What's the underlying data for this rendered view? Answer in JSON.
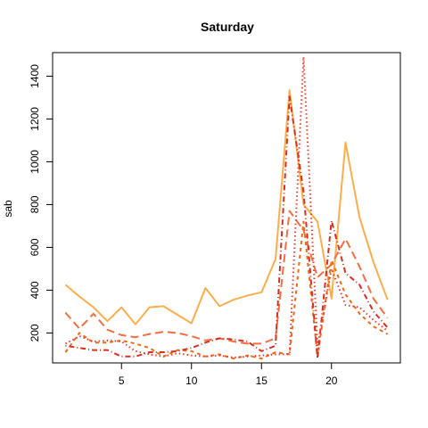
{
  "chart_data": {
    "type": "line",
    "title": "Saturday",
    "xlabel": "",
    "ylabel": "sab",
    "xlim": [
      0.08,
      24.92
    ],
    "ylim": [
      60,
      1510
    ],
    "xticks": [
      5,
      10,
      15,
      20
    ],
    "yticks": [
      200,
      400,
      600,
      800,
      1000,
      1200,
      1400
    ],
    "grid": false,
    "legend": "none",
    "x": [
      1,
      2,
      3,
      4,
      5,
      6,
      7,
      8,
      9,
      10,
      11,
      12,
      13,
      14,
      15,
      16,
      17,
      18,
      19,
      20,
      21,
      22,
      23,
      24
    ],
    "series": [
      {
        "color": "#FDAE4B",
        "dash": "solid",
        "values": [
          425,
          370,
          320,
          255,
          320,
          240,
          320,
          325,
          285,
          245,
          410,
          325,
          355,
          375,
          390,
          545,
          1335,
          800,
          720,
          360,
          1090,
          740,
          530,
          355
        ]
      },
      {
        "color": "#F46D43",
        "dash": "longdash",
        "values": [
          295,
          220,
          290,
          215,
          190,
          180,
          195,
          205,
          200,
          185,
          165,
          175,
          160,
          150,
          150,
          175,
          770,
          680,
          460,
          520,
          640,
          510,
          360,
          270
        ]
      },
      {
        "color": "#F16913",
        "dash": "dashed",
        "values": [
          110,
          200,
          155,
          155,
          165,
          150,
          130,
          90,
          120,
          115,
          90,
          100,
          80,
          95,
          80,
          110,
          100,
          720,
          90,
          540,
          380,
          290,
          230,
          195
        ]
      },
      {
        "color": "#D7301F",
        "dash": "dotdash",
        "values": [
          140,
          130,
          120,
          120,
          90,
          90,
          110,
          110,
          115,
          130,
          155,
          175,
          170,
          160,
          115,
          140,
          1305,
          860,
          80,
          725,
          480,
          425,
          300,
          225
        ]
      },
      {
        "color": "#EF3B2C",
        "dash": "dotted",
        "values": [
          150,
          185,
          160,
          165,
          160,
          115,
          100,
          90,
          105,
          95,
          90,
          95,
          85,
          90,
          95,
          100,
          100,
          1490,
          140,
          500,
          330,
          320,
          260,
          210
        ]
      }
    ]
  }
}
